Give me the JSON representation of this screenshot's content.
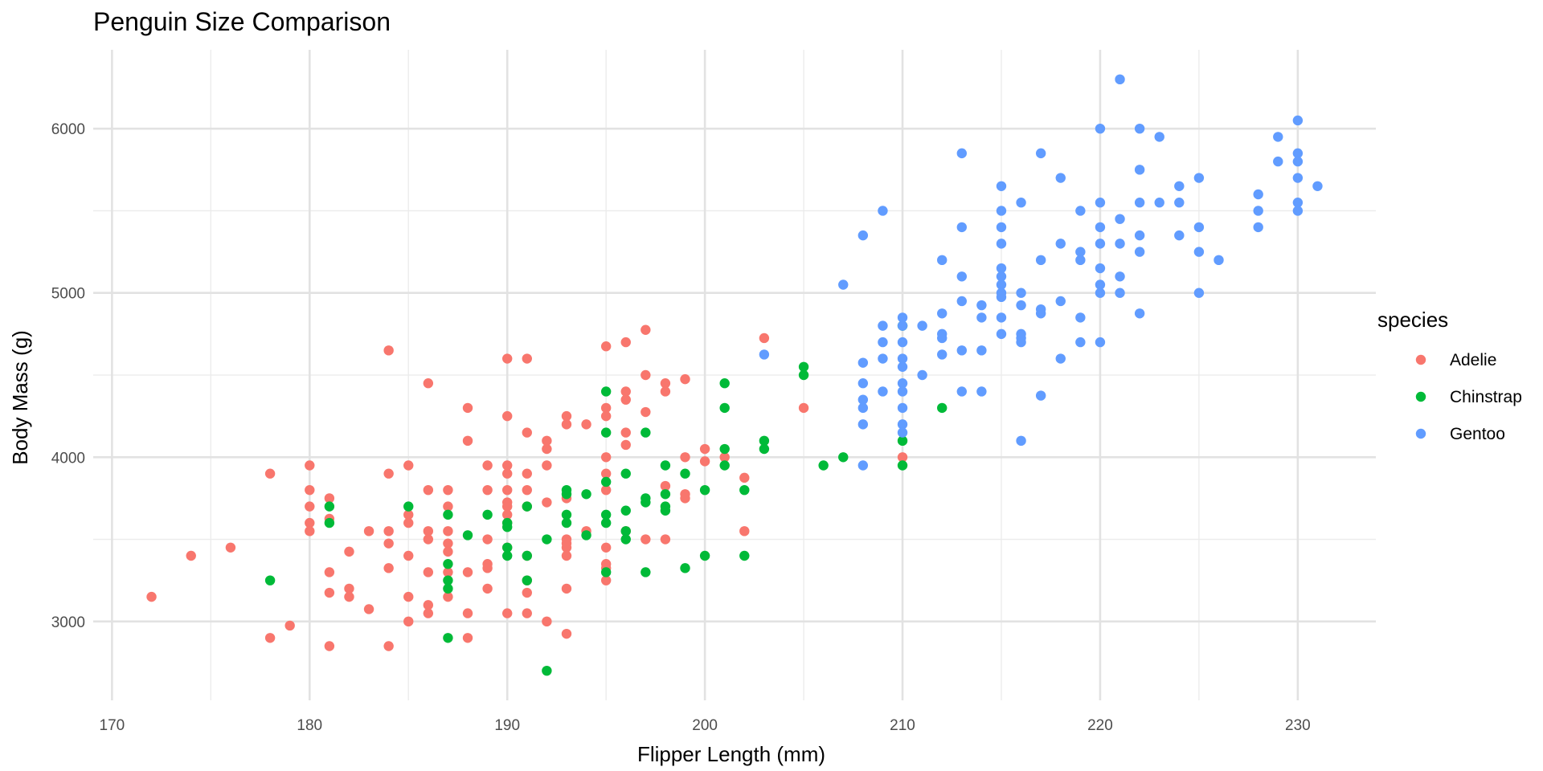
{
  "chart_data": {
    "type": "scatter",
    "title": "Penguin Size Comparison",
    "xlabel": "Flipper Length (mm)",
    "ylabel": "Body Mass (g)",
    "xlim": [
      169.05,
      233.95
    ],
    "ylim": [
      2520,
      6480
    ],
    "x_ticks": [
      170,
      180,
      190,
      200,
      210,
      220,
      230
    ],
    "x_minor_ticks": [
      175,
      185,
      195,
      205,
      215,
      225
    ],
    "y_ticks": [
      3000,
      4000,
      5000,
      6000
    ],
    "y_minor_ticks": [
      3500,
      4500,
      5500
    ],
    "grid": true,
    "legend": {
      "title": "species",
      "position": "right"
    },
    "series": [
      {
        "name": "Adelie",
        "color": "#F8766D",
        "points": [
          [
            172,
            3150
          ],
          [
            174,
            3400
          ],
          [
            176,
            3450
          ],
          [
            178,
            3900
          ],
          [
            178,
            2900
          ],
          [
            179,
            2975
          ],
          [
            180,
            3950
          ],
          [
            180,
            3800
          ],
          [
            180,
            3700
          ],
          [
            180,
            3600
          ],
          [
            180,
            3550
          ],
          [
            181,
            3750
          ],
          [
            181,
            3625
          ],
          [
            181,
            3300
          ],
          [
            181,
            3175
          ],
          [
            181,
            2850
          ],
          [
            182,
            3425
          ],
          [
            182,
            3200
          ],
          [
            182,
            3150
          ],
          [
            183,
            3550
          ],
          [
            183,
            3075
          ],
          [
            184,
            4650
          ],
          [
            184,
            3900
          ],
          [
            184,
            3550
          ],
          [
            184,
            3475
          ],
          [
            184,
            3325
          ],
          [
            184,
            2850
          ],
          [
            185,
            3950
          ],
          [
            185,
            3650
          ],
          [
            185,
            3600
          ],
          [
            185,
            3400
          ],
          [
            185,
            3150
          ],
          [
            185,
            3000
          ],
          [
            186,
            4450
          ],
          [
            186,
            3800
          ],
          [
            186,
            3550
          ],
          [
            186,
            3500
          ],
          [
            186,
            3300
          ],
          [
            186,
            3100
          ],
          [
            186,
            3050
          ],
          [
            187,
            3800
          ],
          [
            187,
            3700
          ],
          [
            187,
            3550
          ],
          [
            187,
            3475
          ],
          [
            187,
            3425
          ],
          [
            187,
            3300
          ],
          [
            187,
            3150
          ],
          [
            188,
            4300
          ],
          [
            188,
            4100
          ],
          [
            188,
            3300
          ],
          [
            188,
            3050
          ],
          [
            188,
            2900
          ],
          [
            189,
            3950
          ],
          [
            189,
            3800
          ],
          [
            189,
            3500
          ],
          [
            189,
            3350
          ],
          [
            189,
            3325
          ],
          [
            189,
            3200
          ],
          [
            190,
            4600
          ],
          [
            190,
            4250
          ],
          [
            190,
            3950
          ],
          [
            190,
            3900
          ],
          [
            190,
            3800
          ],
          [
            190,
            3725
          ],
          [
            190,
            3700
          ],
          [
            190,
            3650
          ],
          [
            190,
            3600
          ],
          [
            190,
            3450
          ],
          [
            190,
            3050
          ],
          [
            191,
            4600
          ],
          [
            191,
            4150
          ],
          [
            191,
            3900
          ],
          [
            191,
            3800
          ],
          [
            191,
            3700
          ],
          [
            191,
            3400
          ],
          [
            191,
            3250
          ],
          [
            191,
            3175
          ],
          [
            191,
            3050
          ],
          [
            192,
            4100
          ],
          [
            192,
            4050
          ],
          [
            192,
            3950
          ],
          [
            192,
            3725
          ],
          [
            192,
            3000
          ],
          [
            193,
            4250
          ],
          [
            193,
            4200
          ],
          [
            193,
            3750
          ],
          [
            193,
            3500
          ],
          [
            193,
            3475
          ],
          [
            193,
            3450
          ],
          [
            193,
            3400
          ],
          [
            193,
            3200
          ],
          [
            193,
            2925
          ],
          [
            194,
            4200
          ],
          [
            194,
            3550
          ],
          [
            195,
            4675
          ],
          [
            195,
            4300
          ],
          [
            195,
            4250
          ],
          [
            195,
            4000
          ],
          [
            195,
            3900
          ],
          [
            195,
            3800
          ],
          [
            195,
            3450
          ],
          [
            195,
            3350
          ],
          [
            195,
            3325
          ],
          [
            195,
            3250
          ],
          [
            196,
            4700
          ],
          [
            196,
            4400
          ],
          [
            196,
            4350
          ],
          [
            196,
            4150
          ],
          [
            196,
            4075
          ],
          [
            196,
            3550
          ],
          [
            197,
            4775
          ],
          [
            197,
            4500
          ],
          [
            197,
            4275
          ],
          [
            197,
            3500
          ],
          [
            198,
            4450
          ],
          [
            198,
            4400
          ],
          [
            198,
            3825
          ],
          [
            198,
            3500
          ],
          [
            199,
            4475
          ],
          [
            199,
            4000
          ],
          [
            199,
            3775
          ],
          [
            199,
            3750
          ],
          [
            200,
            4050
          ],
          [
            200,
            3975
          ],
          [
            201,
            4000
          ],
          [
            202,
            3875
          ],
          [
            202,
            3550
          ],
          [
            203,
            4725
          ],
          [
            205,
            4300
          ],
          [
            210,
            4000
          ]
        ]
      },
      {
        "name": "Chinstrap",
        "color": "#00BA38",
        "points": [
          [
            178,
            3250
          ],
          [
            181,
            3700
          ],
          [
            181,
            3600
          ],
          [
            185,
            3700
          ],
          [
            187,
            3650
          ],
          [
            187,
            3350
          ],
          [
            187,
            3250
          ],
          [
            187,
            3200
          ],
          [
            187,
            2900
          ],
          [
            188,
            3525
          ],
          [
            189,
            3650
          ],
          [
            190,
            3600
          ],
          [
            190,
            3575
          ],
          [
            190,
            3450
          ],
          [
            190,
            3400
          ],
          [
            191,
            3700
          ],
          [
            191,
            3400
          ],
          [
            191,
            3250
          ],
          [
            192,
            3500
          ],
          [
            192,
            2700
          ],
          [
            193,
            3800
          ],
          [
            193,
            3775
          ],
          [
            193,
            3650
          ],
          [
            193,
            3600
          ],
          [
            194,
            3775
          ],
          [
            194,
            3525
          ],
          [
            195,
            4400
          ],
          [
            195,
            4150
          ],
          [
            195,
            3850
          ],
          [
            195,
            3650
          ],
          [
            195,
            3600
          ],
          [
            195,
            3300
          ],
          [
            196,
            3900
          ],
          [
            196,
            3675
          ],
          [
            196,
            3550
          ],
          [
            196,
            3500
          ],
          [
            197,
            4150
          ],
          [
            197,
            3750
          ],
          [
            197,
            3725
          ],
          [
            197,
            3300
          ],
          [
            198,
            3950
          ],
          [
            198,
            3775
          ],
          [
            198,
            3700
          ],
          [
            198,
            3675
          ],
          [
            199,
            3900
          ],
          [
            199,
            3325
          ],
          [
            200,
            3800
          ],
          [
            200,
            3400
          ],
          [
            201,
            4450
          ],
          [
            201,
            4300
          ],
          [
            201,
            4050
          ],
          [
            201,
            3950
          ],
          [
            202,
            3800
          ],
          [
            202,
            3400
          ],
          [
            203,
            4100
          ],
          [
            203,
            4050
          ],
          [
            205,
            4550
          ],
          [
            205,
            4500
          ],
          [
            206,
            3950
          ],
          [
            207,
            4000
          ],
          [
            210,
            4800
          ],
          [
            210,
            4100
          ],
          [
            210,
            3950
          ],
          [
            212,
            4300
          ]
        ]
      },
      {
        "name": "Gentoo",
        "color": "#619CFF",
        "points": [
          [
            203,
            4625
          ],
          [
            207,
            5050
          ],
          [
            208,
            5350
          ],
          [
            208,
            4575
          ],
          [
            208,
            4450
          ],
          [
            208,
            4350
          ],
          [
            208,
            4300
          ],
          [
            208,
            4200
          ],
          [
            208,
            3950
          ],
          [
            209,
            5500
          ],
          [
            209,
            4800
          ],
          [
            209,
            4700
          ],
          [
            209,
            4600
          ],
          [
            209,
            4400
          ],
          [
            210,
            4850
          ],
          [
            210,
            4800
          ],
          [
            210,
            4700
          ],
          [
            210,
            4600
          ],
          [
            210,
            4550
          ],
          [
            210,
            4450
          ],
          [
            210,
            4400
          ],
          [
            210,
            4300
          ],
          [
            210,
            4200
          ],
          [
            210,
            4150
          ],
          [
            211,
            4800
          ],
          [
            211,
            4500
          ],
          [
            212,
            5200
          ],
          [
            212,
            4875
          ],
          [
            212,
            4750
          ],
          [
            212,
            4725
          ],
          [
            212,
            4625
          ],
          [
            213,
            5850
          ],
          [
            213,
            5400
          ],
          [
            213,
            5100
          ],
          [
            213,
            4950
          ],
          [
            213,
            4650
          ],
          [
            213,
            4400
          ],
          [
            214,
            4925
          ],
          [
            214,
            4850
          ],
          [
            214,
            4650
          ],
          [
            214,
            4400
          ],
          [
            215,
            5650
          ],
          [
            215,
            5500
          ],
          [
            215,
            5400
          ],
          [
            215,
            5300
          ],
          [
            215,
            5150
          ],
          [
            215,
            5100
          ],
          [
            215,
            5050
          ],
          [
            215,
            5000
          ],
          [
            215,
            4975
          ],
          [
            215,
            4850
          ],
          [
            215,
            4750
          ],
          [
            216,
            5550
          ],
          [
            216,
            5000
          ],
          [
            216,
            4925
          ],
          [
            216,
            4750
          ],
          [
            216,
            4725
          ],
          [
            216,
            4700
          ],
          [
            216,
            4100
          ],
          [
            217,
            5850
          ],
          [
            217,
            5200
          ],
          [
            217,
            4900
          ],
          [
            217,
            4875
          ],
          [
            217,
            4375
          ],
          [
            218,
            5700
          ],
          [
            218,
            5300
          ],
          [
            218,
            4950
          ],
          [
            218,
            4600
          ],
          [
            219,
            5500
          ],
          [
            219,
            5250
          ],
          [
            219,
            5200
          ],
          [
            219,
            4850
          ],
          [
            219,
            4700
          ],
          [
            220,
            6000
          ],
          [
            220,
            5550
          ],
          [
            220,
            5400
          ],
          [
            220,
            5300
          ],
          [
            220,
            5150
          ],
          [
            220,
            5050
          ],
          [
            220,
            5000
          ],
          [
            220,
            4700
          ],
          [
            221,
            6300
          ],
          [
            221,
            5450
          ],
          [
            221,
            5300
          ],
          [
            221,
            5100
          ],
          [
            221,
            5000
          ],
          [
            222,
            6000
          ],
          [
            222,
            5750
          ],
          [
            222,
            5550
          ],
          [
            222,
            5350
          ],
          [
            222,
            5250
          ],
          [
            222,
            4875
          ],
          [
            223,
            5950
          ],
          [
            223,
            5550
          ],
          [
            224,
            5650
          ],
          [
            224,
            5550
          ],
          [
            224,
            5350
          ],
          [
            225,
            5700
          ],
          [
            225,
            5400
          ],
          [
            225,
            5250
          ],
          [
            225,
            5000
          ],
          [
            226,
            5200
          ],
          [
            228,
            5600
          ],
          [
            228,
            5500
          ],
          [
            228,
            5400
          ],
          [
            229,
            5950
          ],
          [
            229,
            5800
          ],
          [
            230,
            6050
          ],
          [
            230,
            5850
          ],
          [
            230,
            5800
          ],
          [
            230,
            5700
          ],
          [
            230,
            5550
          ],
          [
            230,
            5500
          ],
          [
            231,
            5650
          ]
        ]
      }
    ]
  }
}
